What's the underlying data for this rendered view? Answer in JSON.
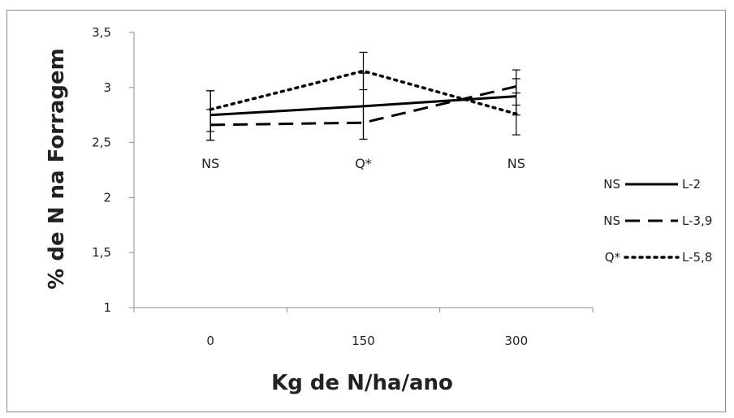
{
  "chart_data": {
    "type": "line",
    "title": "",
    "xlabel": "Kg de N/ha/ano",
    "ylabel": "% de N na Forragem",
    "categories": [
      "0",
      "150",
      "300"
    ],
    "ylim": [
      1,
      3.5
    ],
    "yticks": [
      "1",
      "1,5",
      "2",
      "2,5",
      "3",
      "3,5"
    ],
    "grid": false,
    "legend_position": "right",
    "group_labels": [
      "NS",
      "Q*",
      "NS"
    ],
    "series": [
      {
        "name": "L-2",
        "significance": "NS",
        "style": "solid",
        "color": "#000000",
        "values": [
          2.75,
          2.83,
          2.92
        ],
        "error_low": [
          2.52,
          2.53,
          2.75
        ],
        "error_high": [
          2.97,
          3.13,
          3.08
        ]
      },
      {
        "name": "L-3,9",
        "significance": "NS",
        "style": "dashed",
        "color": "#000000",
        "values": [
          2.66,
          2.68,
          3.01
        ],
        "error_low": [
          2.52,
          2.53,
          2.84
        ],
        "error_high": [
          2.8,
          2.83,
          3.16
        ]
      },
      {
        "name": "L-5,8",
        "significance": "Q*",
        "style": "dotted",
        "color": "#000000",
        "values": [
          2.8,
          3.15,
          2.76
        ],
        "error_low": [
          2.6,
          2.98,
          2.57
        ],
        "error_high": [
          2.97,
          3.32,
          2.95
        ]
      }
    ]
  }
}
